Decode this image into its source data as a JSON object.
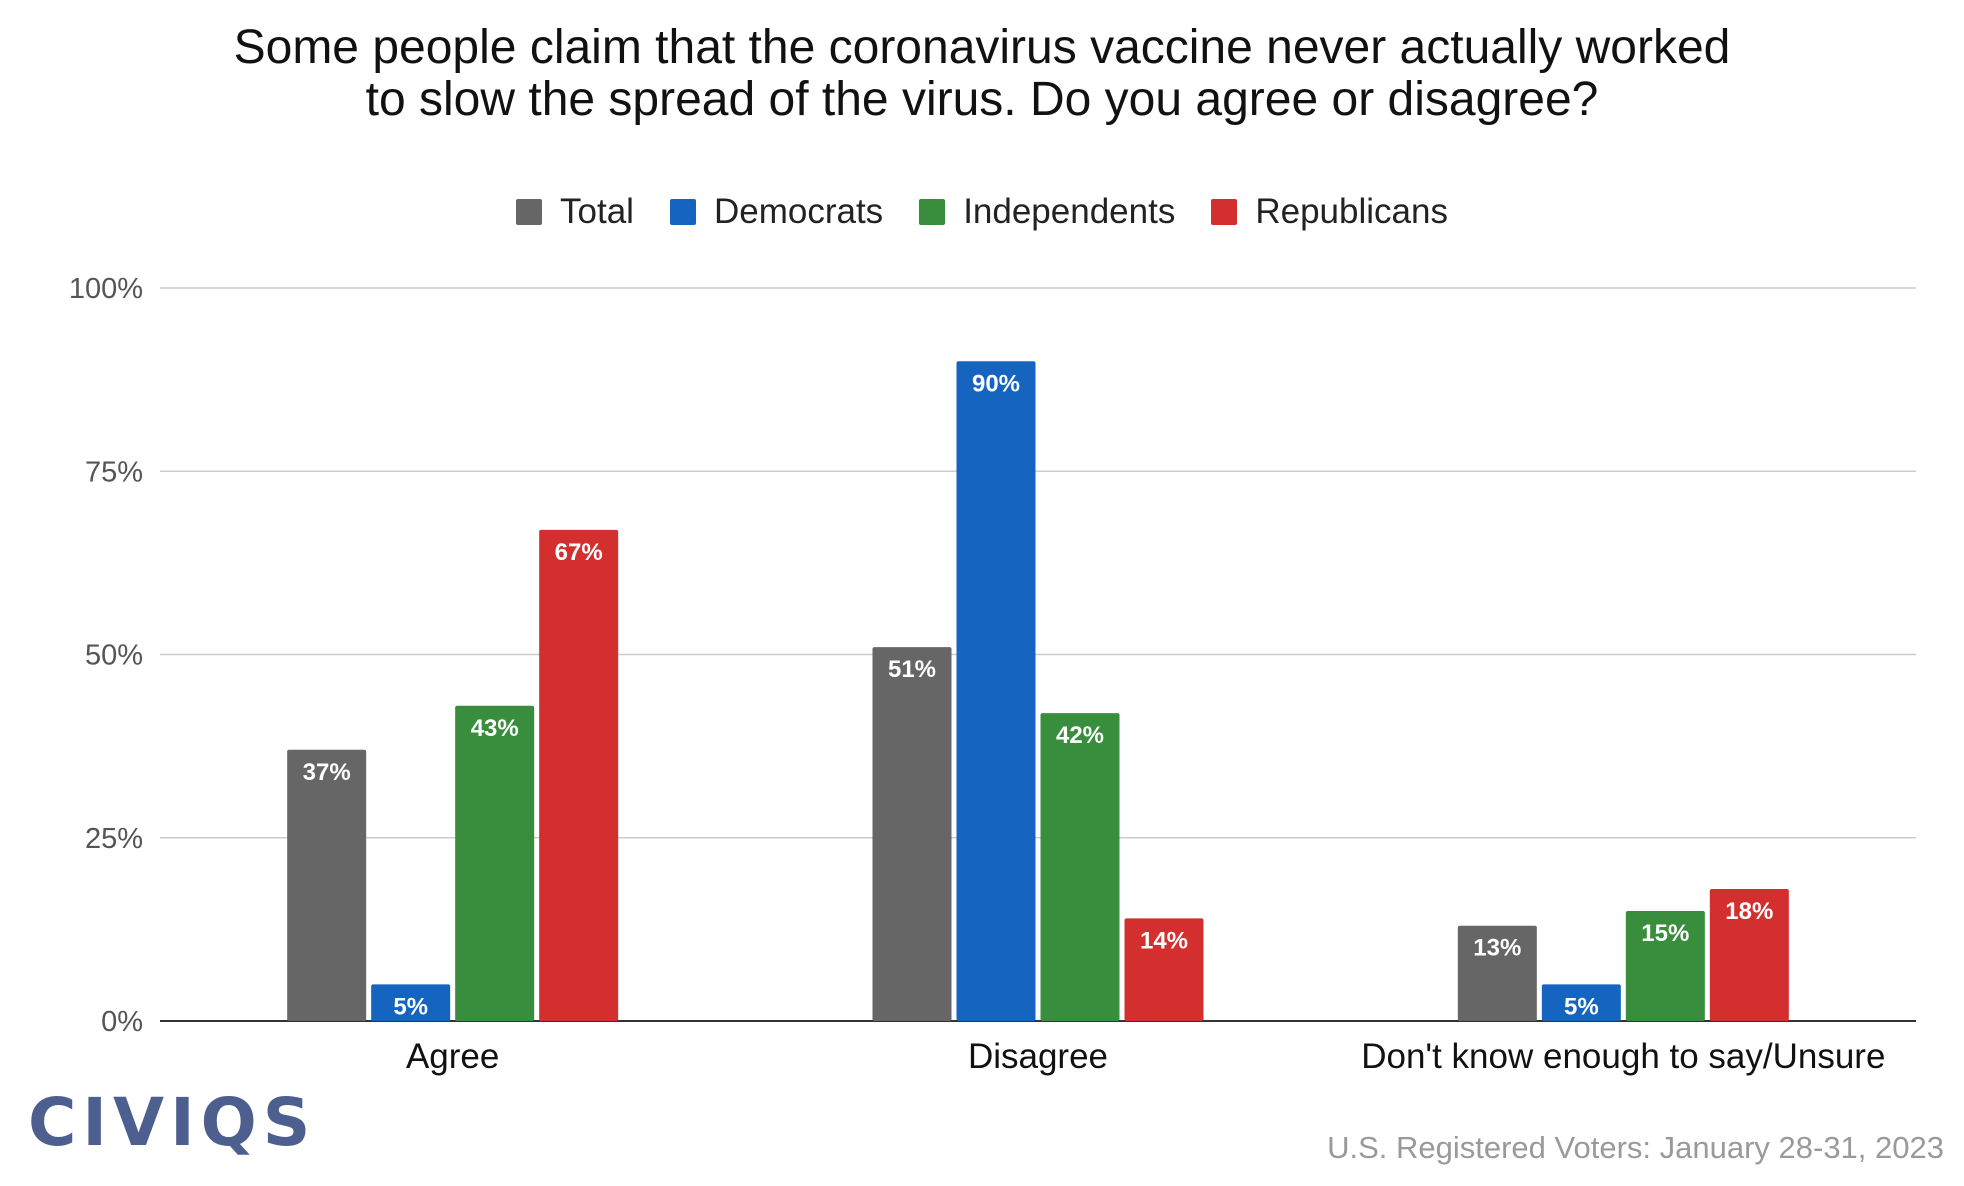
{
  "chart_data": {
    "type": "bar",
    "title_lines": [
      "Some people claim that the coronavirus vaccine never actually worked",
      "to slow the spread of the virus. Do you agree or disagree?"
    ],
    "categories": [
      "Agree",
      "Disagree",
      "Don't know enough to say/Unsure"
    ],
    "series": [
      {
        "name": "Total",
        "color": "#666666",
        "values": [
          37,
          51,
          13
        ]
      },
      {
        "name": "Democrats",
        "color": "#1565c0",
        "values": [
          5,
          90,
          5
        ]
      },
      {
        "name": "Independents",
        "color": "#388e3c",
        "values": [
          43,
          42,
          15
        ]
      },
      {
        "name": "Republicans",
        "color": "#d32f2f",
        "values": [
          67,
          14,
          18
        ]
      }
    ],
    "value_suffix": "%",
    "ylim": [
      0,
      100
    ],
    "yticks": [
      "0%",
      "25%",
      "50%",
      "75%",
      "100%"
    ],
    "grid": true,
    "legend_position": "top"
  },
  "logo_text": "CIVIQS",
  "source_note": "U.S. Registered Voters: January 28-31, 2023"
}
